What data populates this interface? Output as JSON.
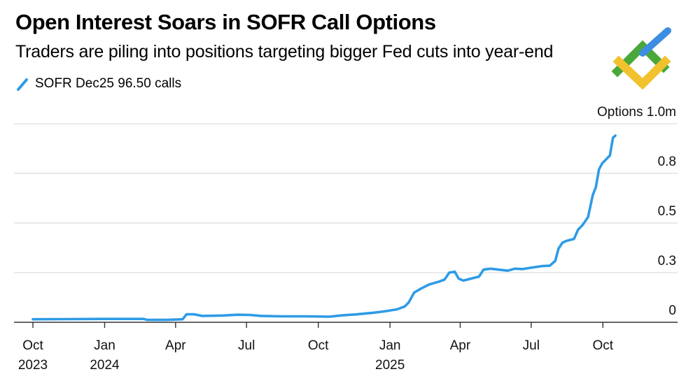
{
  "header": {
    "title": "Open Interest Soars in SOFR Call Options",
    "subtitle": "Traders are piling into positions targeting bigger Fed cuts into year-end"
  },
  "legend": {
    "label": "SOFR Dec25 96.50 calls"
  },
  "colors": {
    "series": "#2e9be6",
    "grid": "#d4d4d4",
    "axis": "#333333",
    "logo_green": "#4aa83a",
    "logo_blue": "#3d8ee0",
    "logo_yellow": "#f2c12e"
  },
  "chart_data": {
    "type": "line",
    "title": "Open Interest Soars in SOFR Call Options",
    "subtitle": "Traders are piling into positions targeting bigger Fed cuts into year-end",
    "y_unit_label": "Options 1.0m",
    "ylim": [
      0,
      1.0
    ],
    "grid": true,
    "legend_position": "top-left",
    "y_ticks": [
      {
        "value": 0,
        "label": "0"
      },
      {
        "value": 0.25,
        "label": "0.3"
      },
      {
        "value": 0.5,
        "label": "0.5"
      },
      {
        "value": 0.75,
        "label": "0.8"
      },
      {
        "value": 1.0,
        "label": "1.0m"
      }
    ],
    "x_ticks": [
      {
        "date": "2023-10-01",
        "label": "Oct",
        "year": "2023"
      },
      {
        "date": "2024-01-01",
        "label": "Jan",
        "year": "2024"
      },
      {
        "date": "2024-04-01",
        "label": "Apr",
        "year": ""
      },
      {
        "date": "2024-07-01",
        "label": "Jul",
        "year": ""
      },
      {
        "date": "2024-10-01",
        "label": "Oct",
        "year": ""
      },
      {
        "date": "2025-01-01",
        "label": "Jan",
        "year": "2025"
      },
      {
        "date": "2025-04-01",
        "label": "Apr",
        "year": ""
      },
      {
        "date": "2025-07-01",
        "label": "Jul",
        "year": ""
      },
      {
        "date": "2025-10-01",
        "label": "Oct",
        "year": ""
      }
    ],
    "xlim": [
      "2023-10-01",
      "2025-10-25"
    ],
    "series": [
      {
        "name": "SOFR Dec25 96.50 calls",
        "points": [
          [
            "2023-10-01",
            0.015
          ],
          [
            "2023-11-15",
            0.016
          ],
          [
            "2024-01-01",
            0.017
          ],
          [
            "2024-02-20",
            0.017
          ],
          [
            "2024-02-25",
            0.012
          ],
          [
            "2024-03-20",
            0.012
          ],
          [
            "2024-04-10",
            0.015
          ],
          [
            "2024-04-15",
            0.04
          ],
          [
            "2024-04-25",
            0.04
          ],
          [
            "2024-05-05",
            0.032
          ],
          [
            "2024-06-01",
            0.034
          ],
          [
            "2024-06-20",
            0.038
          ],
          [
            "2024-07-05",
            0.037
          ],
          [
            "2024-07-20",
            0.032
          ],
          [
            "2024-08-15",
            0.03
          ],
          [
            "2024-09-15",
            0.03
          ],
          [
            "2024-10-15",
            0.028
          ],
          [
            "2024-11-01",
            0.035
          ],
          [
            "2024-11-20",
            0.04
          ],
          [
            "2024-12-10",
            0.048
          ],
          [
            "2024-12-25",
            0.055
          ],
          [
            "2025-01-10",
            0.065
          ],
          [
            "2025-01-20",
            0.08
          ],
          [
            "2025-01-25",
            0.1
          ],
          [
            "2025-02-01",
            0.15
          ],
          [
            "2025-02-10",
            0.17
          ],
          [
            "2025-02-20",
            0.19
          ],
          [
            "2025-03-05",
            0.205
          ],
          [
            "2025-03-12",
            0.215
          ],
          [
            "2025-03-18",
            0.25
          ],
          [
            "2025-03-25",
            0.255
          ],
          [
            "2025-03-30",
            0.22
          ],
          [
            "2025-04-05",
            0.21
          ],
          [
            "2025-04-15",
            0.22
          ],
          [
            "2025-04-25",
            0.23
          ],
          [
            "2025-05-01",
            0.265
          ],
          [
            "2025-05-10",
            0.27
          ],
          [
            "2025-05-20",
            0.265
          ],
          [
            "2025-06-01",
            0.26
          ],
          [
            "2025-06-10",
            0.27
          ],
          [
            "2025-06-20",
            0.268
          ],
          [
            "2025-07-01",
            0.275
          ],
          [
            "2025-07-15",
            0.283
          ],
          [
            "2025-07-25",
            0.285
          ],
          [
            "2025-08-01",
            0.31
          ],
          [
            "2025-08-05",
            0.37
          ],
          [
            "2025-08-10",
            0.4
          ],
          [
            "2025-08-15",
            0.41
          ],
          [
            "2025-08-25",
            0.42
          ],
          [
            "2025-08-30",
            0.465
          ],
          [
            "2025-09-05",
            0.49
          ],
          [
            "2025-09-12",
            0.53
          ],
          [
            "2025-09-18",
            0.64
          ],
          [
            "2025-09-22",
            0.68
          ],
          [
            "2025-09-26",
            0.77
          ],
          [
            "2025-09-30",
            0.8
          ],
          [
            "2025-10-05",
            0.82
          ],
          [
            "2025-10-10",
            0.84
          ],
          [
            "2025-10-14",
            0.93
          ],
          [
            "2025-10-17",
            0.94
          ]
        ]
      }
    ]
  }
}
